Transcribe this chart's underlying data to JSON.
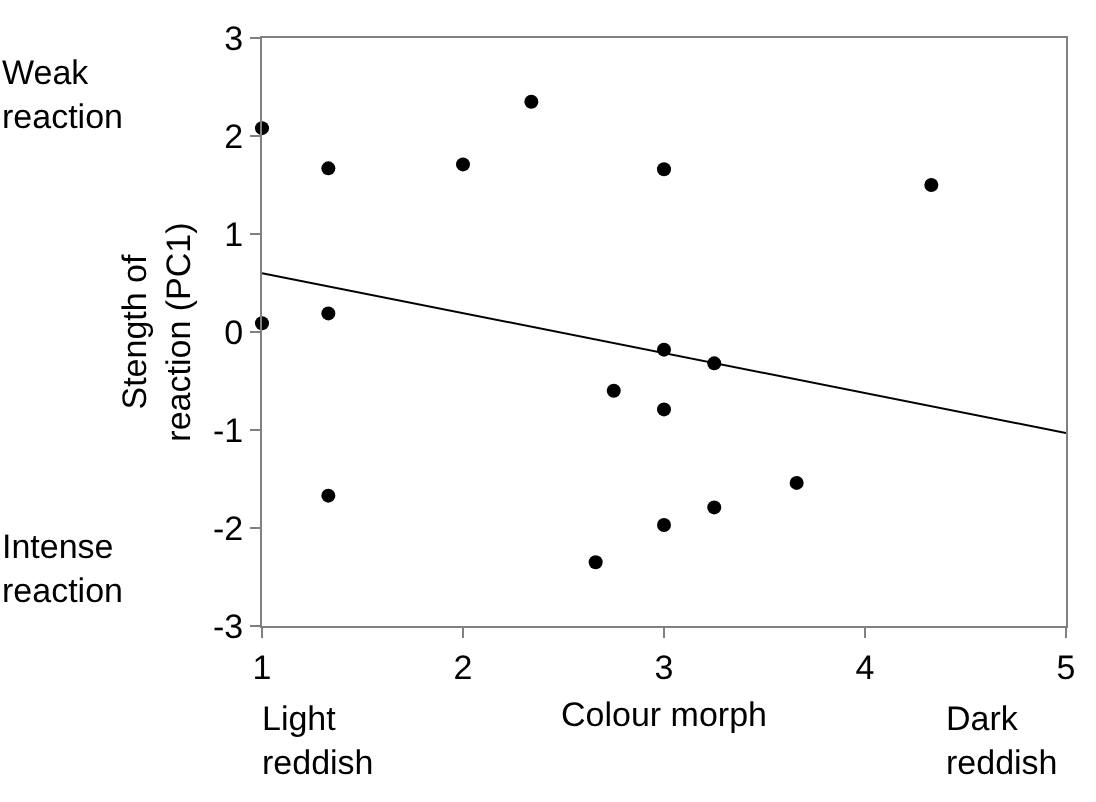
{
  "chart_data": {
    "type": "scatter",
    "xlabel": "Colour morph",
    "ylabel": "Stength of\nreaction (PC1)",
    "annotations": [
      "Weak\nreaction",
      "Intense\nreaction",
      "Light\nreddish",
      "Dark\nreddish"
    ],
    "xlim": [
      1,
      5
    ],
    "xticks": [
      1,
      2,
      3,
      4,
      5
    ],
    "ylim": [
      -3,
      3
    ],
    "yticks": [
      -3,
      -2,
      -1,
      0,
      1,
      2,
      3
    ],
    "marker": "circle",
    "series": [
      {
        "color": "#000000",
        "x": [
          1,
          1.33,
          2,
          2.34,
          3,
          4.33,
          1,
          1.33,
          3,
          3.25,
          2.75,
          3,
          1.33,
          3.66,
          3.25,
          3,
          2.66
        ],
        "values": [
          2.08,
          1.67,
          1.71,
          2.35,
          1.66,
          1.5,
          0.09,
          0.19,
          -0.18,
          -0.32,
          -0.6,
          -0.79,
          -1.67,
          -1.54,
          -1.79,
          -1.97,
          -2.35
        ]
      },
      {
        "type": "line",
        "color": "#000000",
        "x": [
          1,
          5
        ],
        "values": [
          0.6,
          -1.03
        ],
        "marker": "none",
        "line_style": "solid"
      }
    ]
  }
}
